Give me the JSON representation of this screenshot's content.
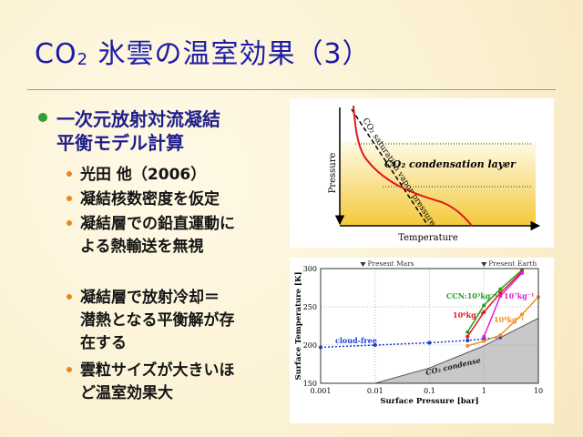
{
  "title": {
    "text": "CO",
    "sub": "2",
    "rest": " 氷雲の温室効果（3）"
  },
  "bullets": [
    {
      "lines": [
        "一次元放射対流凝結",
        "平衡モデル計算"
      ],
      "items": [
        {
          "lines": [
            "光田 他（2006）"
          ]
        },
        {
          "lines": [
            "凝結核数密度を仮定"
          ]
        },
        {
          "lines": [
            "凝結層での鉛直運動に",
            "よる熱輸送を無視"
          ]
        },
        {
          "lines": [
            "凝結層で放射冷却＝",
            "潜熱となる平衡解が存",
            "在する"
          ]
        },
        {
          "lines": [
            "雲粒サイズが大きいほ",
            "ど温室効果大"
          ]
        }
      ]
    }
  ],
  "figure_top": {
    "pressure_label": "Pressure",
    "temperature_label": "Temperature",
    "condensation_label": "CO₂ condensation layer",
    "saturation_label": "CO₂ saturation vapor pressure"
  },
  "chart_data": {
    "type": "line",
    "xlabel": "Surface Pressure [bar]",
    "ylabel": "Surface  Temperature [K]",
    "xlog": true,
    "xlim": [
      0.001,
      10
    ],
    "ylim": [
      150,
      300
    ],
    "xticks": [
      0.001,
      0.01,
      0.1,
      1,
      10
    ],
    "yticks": [
      150,
      200,
      250,
      300
    ],
    "grid": true,
    "markers": [
      {
        "label": "Present Mars",
        "x": 0.006
      },
      {
        "label": "Present Earth",
        "x": 1
      }
    ],
    "series": [
      {
        "name": "CO₂ condense",
        "color": "#9a9a9a",
        "fill": true,
        "x": [
          0.01,
          0.1,
          1,
          10
        ],
        "values": [
          150,
          170,
          199,
          235
        ]
      },
      {
        "name": "cloud-free",
        "color": "#1a3fd0",
        "dotted": true,
        "x": [
          0.001,
          0.01,
          0.1,
          0.5,
          1,
          2
        ],
        "values": [
          197,
          200,
          203,
          206,
          208,
          210
        ]
      },
      {
        "name": "CCN:10⁵kg⁻¹",
        "color": "#22a022",
        "x": [
          0.5,
          1,
          2,
          5
        ],
        "values": [
          217,
          252,
          273,
          298
        ]
      },
      {
        "name": "10⁶kg⁻¹",
        "color": "#e01818",
        "x": [
          0.5,
          1,
          2,
          5
        ],
        "values": [
          211,
          243,
          268,
          296
        ]
      },
      {
        "name": "10⁷kg⁻¹",
        "color": "#e020d0",
        "x": [
          1,
          2,
          5
        ],
        "values": [
          211,
          264,
          294
        ]
      },
      {
        "name": "10⁸kg⁻¹",
        "color": "#f0901a",
        "x": [
          0.5,
          1,
          2,
          5,
          10
        ],
        "values": [
          199,
          205,
          213,
          240,
          263
        ]
      }
    ]
  }
}
